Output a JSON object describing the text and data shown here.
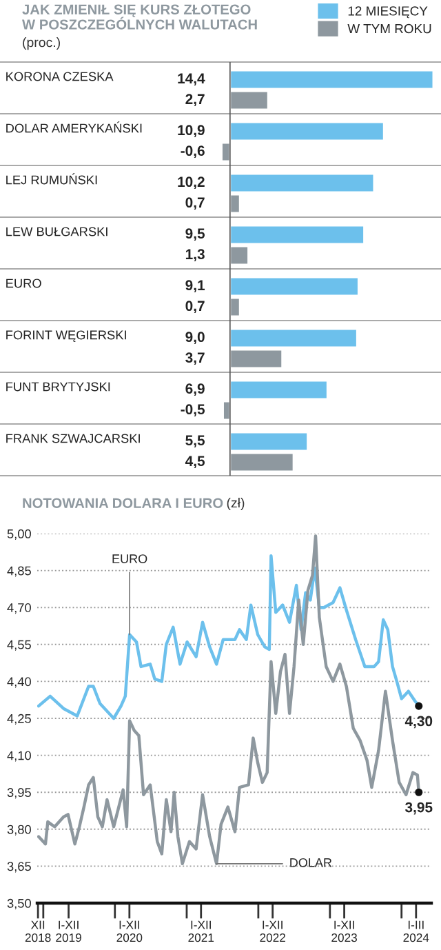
{
  "chart_data": [
    {
      "type": "bar",
      "orientation": "horizontal",
      "title": "JAK ZMIENIŁ SIĘ KURS ZŁOTEGO\nW POSZCZEGÓLNYCH WALUTACH",
      "subtitle": "(proc.)",
      "legend": "top right",
      "categories": [
        "KORONA CZESKA",
        "DOLAR AMERYKAŃSKI",
        "LEJ RUMUŃSKI",
        "LEW BUŁGARSKI",
        "EURO",
        "FORINT WĘGIERSKI",
        "FUNT BRYTYJSKI",
        "FRANK SZWAJCARSKI"
      ],
      "series": [
        {
          "name": "12 MIESIĘCY",
          "color": "#6cc0ec",
          "values": [
            14.4,
            10.9,
            10.2,
            9.5,
            9.1,
            9.0,
            6.9,
            5.5
          ],
          "value_labels": [
            "14,4",
            "10,9",
            "10,2",
            "9,5",
            "9,1",
            "9,0",
            "6,9",
            "5,5"
          ]
        },
        {
          "name": "W TYM ROKU",
          "color": "#8e989f",
          "values": [
            2.7,
            -0.6,
            0.7,
            1.3,
            0.7,
            3.7,
            -0.5,
            4.5
          ],
          "value_labels": [
            "2,7",
            "-0,6",
            "0,7",
            "1,3",
            "0,7",
            "3,7",
            "-0,5",
            "4,5"
          ]
        }
      ]
    },
    {
      "type": "line",
      "title": "NOTOWANIA DOLARA I EURO",
      "subtitle": "(zł)",
      "grid": "y",
      "marker": "none",
      "line_style": "solid",
      "xlim": [
        "2018-12-01",
        "2024-06-01"
      ],
      "ylim": [
        3.5,
        5.0
      ],
      "yticks": [
        {
          "value": 3.5,
          "label": "3,50"
        },
        {
          "value": 3.65,
          "label": "3,65"
        },
        {
          "value": 3.8,
          "label": "3,80"
        },
        {
          "value": 3.95,
          "label": "3,95"
        },
        {
          "value": 4.1,
          "label": "4,10"
        },
        {
          "value": 4.25,
          "label": "4,25"
        },
        {
          "value": 4.4,
          "label": "4,40"
        },
        {
          "value": 4.55,
          "label": "4,55"
        },
        {
          "value": 4.7,
          "label": "4,70"
        },
        {
          "value": 4.85,
          "label": "4,85"
        },
        {
          "value": 5.0,
          "label": "5,00"
        }
      ],
      "xticks": [
        {
          "value": "2018-12-05",
          "label": "XII\n2018"
        },
        {
          "value": "2019-01-01",
          "label": null
        },
        {
          "value": "2019-05-10",
          "label": "I-XII\n2019"
        },
        {
          "value": "2020-01-01",
          "label": null
        },
        {
          "value": "2020-03-15",
          "label": "I-XII\n2020"
        },
        {
          "value": "2021-01-01",
          "label": null
        },
        {
          "value": "2021-03-15",
          "label": "I-XII\n2021"
        },
        {
          "value": "2022-01-01",
          "label": null
        },
        {
          "value": "2022-03-15",
          "label": "I-XII\n2022"
        },
        {
          "value": "2023-01-01",
          "label": null
        },
        {
          "value": "2023-03-15",
          "label": "I-XII\n2023"
        },
        {
          "value": "2024-01-01",
          "label": null
        },
        {
          "value": "2024-03-15",
          "label": "I-III\n2024"
        }
      ],
      "series": [
        {
          "color": "#6cc0ec",
          "x": [
            "2018-12-08",
            "2019-02-05",
            "2019-04-14",
            "2019-06-23",
            "2019-08-20",
            "2019-09-13",
            "2019-10-17",
            "2019-12-26",
            "2020-02-01",
            "2020-02-23",
            "2020-03-16",
            "2020-04-20",
            "2020-05-13",
            "2020-06-29",
            "2020-07-22",
            "2020-08-27",
            "2020-09-19",
            "2020-10-24",
            "2020-11-28",
            "2021-01-03",
            "2021-02-18",
            "2021-03-23",
            "2021-04-28",
            "2021-06-02",
            "2021-07-06",
            "2021-09-04",
            "2021-09-27",
            "2021-11-01",
            "2021-11-24",
            "2021-12-29",
            "2022-02-03",
            "2022-02-26",
            "2022-03-07",
            "2022-03-31",
            "2022-05-05",
            "2022-06-09",
            "2022-07-14",
            "2022-08-07",
            "2022-08-30",
            "2022-09-23",
            "2022-10-16",
            "2022-11-08",
            "2022-12-01",
            "2023-01-17",
            "2023-02-21",
            "2023-03-26",
            "2023-05-12",
            "2023-06-28",
            "2023-08-14",
            "2023-09-06",
            "2023-09-30",
            "2023-10-23",
            "2023-11-16",
            "2023-12-08",
            "2024-01-01",
            "2024-02-05",
            "2024-03-10",
            "2024-03-29"
          ],
          "values": [
            4.3,
            4.34,
            4.29,
            4.26,
            4.38,
            4.38,
            4.31,
            4.25,
            4.3,
            4.34,
            4.59,
            4.56,
            4.46,
            4.47,
            4.41,
            4.4,
            4.55,
            4.62,
            4.47,
            4.56,
            4.5,
            4.64,
            4.54,
            4.47,
            4.57,
            4.57,
            4.61,
            4.57,
            4.71,
            4.59,
            4.54,
            4.53,
            4.91,
            4.68,
            4.71,
            4.64,
            4.79,
            4.61,
            4.76,
            4.73,
            4.86,
            4.7,
            4.7,
            4.72,
            4.78,
            4.69,
            4.57,
            4.46,
            4.46,
            4.48,
            4.65,
            4.61,
            4.46,
            4.4,
            4.33,
            4.36,
            4.32,
            4.3
          ]
        },
        {
          "color": "#8e989f",
          "x": [
            "2018-12-08",
            "2019-01-12",
            "2019-01-24",
            "2019-02-28",
            "2019-04-14",
            "2019-05-07",
            "2019-06-11",
            "2019-07-04",
            "2019-07-27",
            "2019-08-20",
            "2019-09-13",
            "2019-10-06",
            "2019-10-29",
            "2019-11-22",
            "2019-12-26",
            "2020-02-12",
            "2020-03-01",
            "2020-03-16",
            "2020-04-09",
            "2020-05-02",
            "2020-05-26",
            "2020-06-29",
            "2020-08-04",
            "2020-08-27",
            "2020-09-19",
            "2020-10-13",
            "2020-10-29",
            "2020-11-17",
            "2020-12-10",
            "2021-01-15",
            "2021-02-18",
            "2021-03-23",
            "2021-04-28",
            "2021-06-02",
            "2021-06-25",
            "2021-07-30",
            "2021-09-04",
            "2021-09-27",
            "2021-11-12",
            "2021-12-06",
            "2021-12-29",
            "2022-01-22",
            "2022-02-15",
            "2022-03-07",
            "2022-03-31",
            "2022-04-24",
            "2022-05-17",
            "2022-06-09",
            "2022-07-02",
            "2022-07-26",
            "2022-08-18",
            "2022-09-11",
            "2022-10-04",
            "2022-10-20",
            "2022-11-08",
            "2022-12-13",
            "2023-01-17",
            "2023-02-21",
            "2023-03-26",
            "2023-04-30",
            "2023-06-04",
            "2023-07-09",
            "2023-08-02",
            "2023-09-06",
            "2023-10-11",
            "2023-11-16",
            "2023-12-20",
            "2024-01-24",
            "2024-02-28",
            "2024-03-22",
            "2024-03-29"
          ],
          "values": [
            3.77,
            3.74,
            3.83,
            3.81,
            3.85,
            3.86,
            3.74,
            3.81,
            3.89,
            3.98,
            4.01,
            3.85,
            3.81,
            3.92,
            3.81,
            3.96,
            3.81,
            4.24,
            4.2,
            4.18,
            3.94,
            3.98,
            3.75,
            3.7,
            3.92,
            3.79,
            3.95,
            3.77,
            3.66,
            3.75,
            3.72,
            3.94,
            3.77,
            3.66,
            3.82,
            3.89,
            3.79,
            3.97,
            3.98,
            4.17,
            4.07,
            3.99,
            4.03,
            4.48,
            4.27,
            4.44,
            4.51,
            4.27,
            4.46,
            4.73,
            4.55,
            4.77,
            4.83,
            4.99,
            4.66,
            4.46,
            4.4,
            4.47,
            4.38,
            4.21,
            4.16,
            4.08,
            3.97,
            4.12,
            4.36,
            4.16,
            3.99,
            3.94,
            4.03,
            4.02,
            3.95
          ]
        }
      ],
      "annotations": [
        {
          "text": "EURO",
          "x": "2020-03-16",
          "y": 4.59
        },
        {
          "text": "DOLAR",
          "x": "2021-06-02",
          "y": 3.66
        },
        {
          "text": "4,30",
          "x": "2024-03-29",
          "y": 4.3
        },
        {
          "text": "3,95",
          "x": "2024-03-29",
          "y": 3.95
        }
      ]
    }
  ]
}
